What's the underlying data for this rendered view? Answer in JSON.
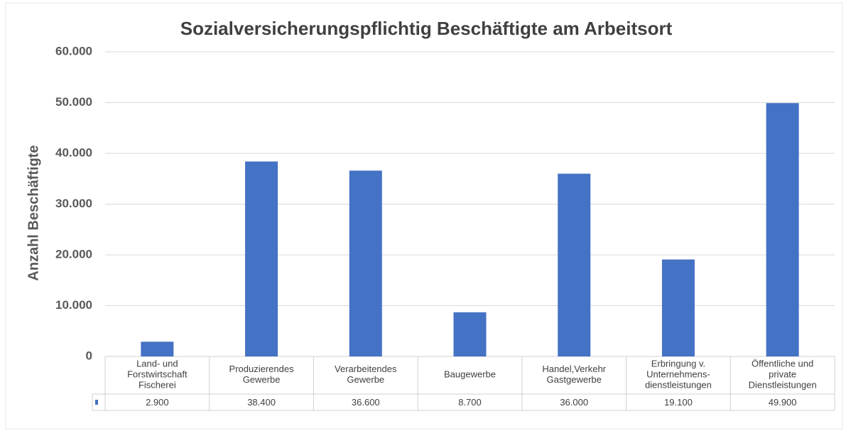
{
  "chart_data": {
    "type": "bar",
    "title": "Sozialversicherungspflichtig Beschäftigte am Arbeitsort",
    "y_label": "Anzahl Beschäftigte",
    "categories": [
      "Land- und\nForstwirtschaft\nFischerei",
      "Produzierendes\nGewerbe",
      "Verarbeitendes\nGewerbe",
      "Baugewerbe",
      "Handel,Verkehr\nGastgewerbe",
      "Erbringung v.\nUnternehmens-\ndienstleistungen",
      "Öffentliche und\nprivate\nDienstleistungen"
    ],
    "values": [
      2900,
      38400,
      36600,
      8700,
      36000,
      19100,
      49900
    ],
    "value_labels": [
      "2.900",
      "38.400",
      "36.600",
      "8.700",
      "36.000",
      "19.100",
      "49.900"
    ],
    "color": "#4472c4",
    "ylim": [
      0,
      60000
    ],
    "yticks": [
      0,
      {
        "value": 10000,
        "label": "10.000"
      },
      {
        "value": 20000,
        "label": "20.000"
      },
      {
        "value": 30000,
        "label": "30.000"
      },
      {
        "value": 40000,
        "label": "40.000"
      },
      {
        "value": 50000,
        "label": "50.000"
      },
      {
        "value": 60000,
        "label": "60.000"
      }
    ],
    "grid": true
  }
}
